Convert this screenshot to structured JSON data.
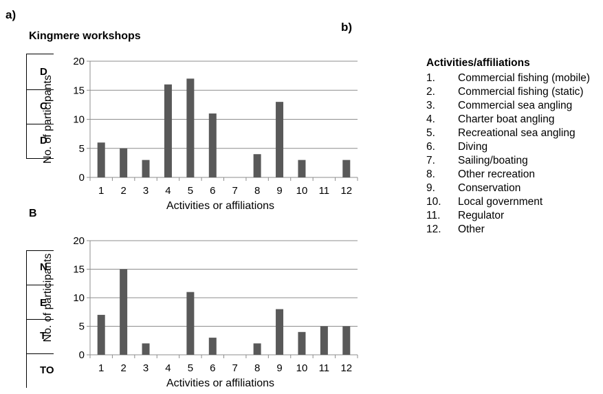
{
  "labels": {
    "a": "a)",
    "b": "b)"
  },
  "chart_data": [
    {
      "type": "bar",
      "title": "Kingmere workshops",
      "categories": [
        "1",
        "2",
        "3",
        "4",
        "5",
        "6",
        "7",
        "8",
        "9",
        "10",
        "11",
        "12"
      ],
      "values": [
        6,
        5,
        3,
        16,
        17,
        11,
        0,
        4,
        13,
        3,
        0,
        3
      ],
      "xlabel": "Activities or affiliations",
      "ylabel": "No. of participants",
      "ylim": [
        0,
        20
      ],
      "yticks": [
        "0",
        "5",
        "10",
        "15",
        "20"
      ],
      "grid": true,
      "bar_color": "#595959"
    },
    {
      "type": "bar",
      "title": "B",
      "categories": [
        "1",
        "2",
        "3",
        "4",
        "5",
        "6",
        "7",
        "8",
        "9",
        "10",
        "11",
        "12"
      ],
      "values": [
        7,
        15,
        2,
        0,
        11,
        3,
        0,
        2,
        8,
        4,
        5,
        5
      ],
      "xlabel": "Activities or affiliations",
      "ylabel": "No. of participants",
      "ylim": [
        0,
        20
      ],
      "yticks": [
        "0",
        "5",
        "10",
        "15",
        "20"
      ],
      "grid": true,
      "bar_color": "#595959"
    }
  ],
  "legend": {
    "title": "Activities/affiliations",
    "items": [
      {
        "num": "1.",
        "text": "Commercial fishing (mobile)"
      },
      {
        "num": "2.",
        "text": "Commercial fishing (static)"
      },
      {
        "num": "3.",
        "text": "Commercial sea angling"
      },
      {
        "num": "4.",
        "text": "Charter boat angling"
      },
      {
        "num": "5.",
        "text": "Recreational sea angling"
      },
      {
        "num": "6.",
        "text": "Diving"
      },
      {
        "num": "7.",
        "text": "Sailing/boating"
      },
      {
        "num": "8.",
        "text": "Other recreation"
      },
      {
        "num": "9.",
        "text": "Conservation"
      },
      {
        "num": "10.",
        "text": "Local government"
      },
      {
        "num": "11.",
        "text": "Regulator"
      },
      {
        "num": "12.",
        "text": "Other"
      }
    ]
  },
  "table_fragments": {
    "top": [
      "D",
      "C",
      "D"
    ],
    "bottom": [
      "N",
      "E",
      "T",
      "TO"
    ]
  }
}
